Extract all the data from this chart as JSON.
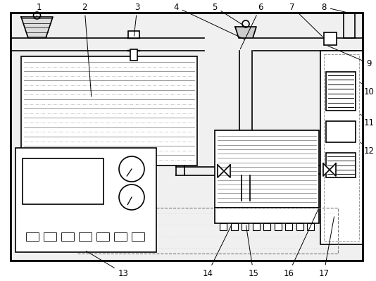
{
  "bg_color": "#ffffff",
  "line_color": "#000000",
  "gray_color": "#999999",
  "fig_width": 5.34,
  "fig_height": 3.99,
  "dpi": 100
}
